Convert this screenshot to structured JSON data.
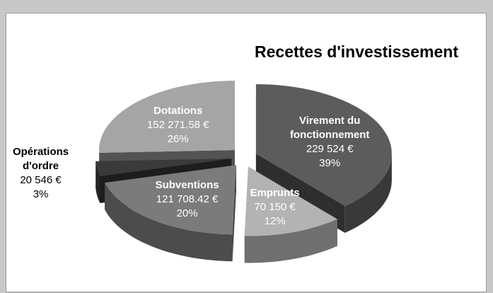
{
  "chart_data": {
    "type": "pie",
    "title": "Recettes d'investissement",
    "categories": [
      "Virement du fonctionnement",
      "Emprunts",
      "Subventions",
      "Opérations d'ordre",
      "Dotations"
    ],
    "values": [
      229524,
      70150,
      121708.42,
      20546,
      152271.58
    ],
    "value_labels": [
      "229 524 €",
      "70 150 €",
      "121 708.42 €",
      "20 546 €",
      "152 271.58 €"
    ],
    "percent_labels": [
      "39%",
      "12%",
      "20%",
      "3%",
      "26%"
    ],
    "colors": [
      "#5c5c5c",
      "#b3b3b3",
      "#7b7b7b",
      "#3a3a3a",
      "#a5a5a5"
    ]
  }
}
